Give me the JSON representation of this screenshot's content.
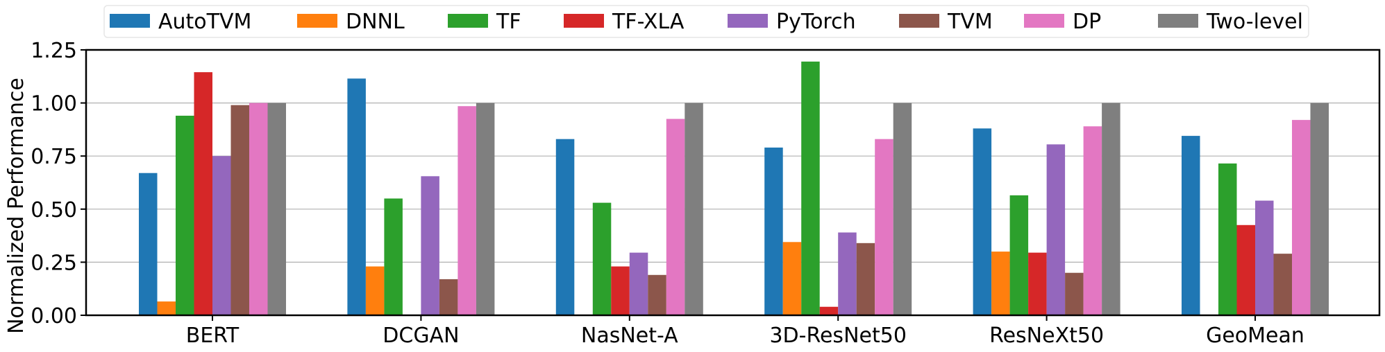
{
  "chart_data": {
    "type": "bar",
    "title": "",
    "xlabel": "",
    "ylabel": "Normalized Performance",
    "ylim": [
      0,
      1.25
    ],
    "yticks": [
      "0.00",
      "0.25",
      "0.50",
      "0.75",
      "1.00",
      "1.25"
    ],
    "grid": "horizontal",
    "legend_position": "top",
    "categories": [
      "BERT",
      "DCGAN",
      "NasNet-A",
      "3D-ResNet50",
      "ResNeXt50",
      "GeoMean"
    ],
    "series": [
      {
        "name": "AutoTVM",
        "color": "#1f77b4",
        "values": [
          0.67,
          1.115,
          0.83,
          0.79,
          0.88,
          0.845
        ]
      },
      {
        "name": "DNNL",
        "color": "#ff7f0e",
        "values": [
          0.065,
          0.23,
          null,
          0.345,
          0.3,
          null
        ]
      },
      {
        "name": "TF",
        "color": "#2ca02c",
        "values": [
          0.94,
          0.55,
          0.53,
          1.195,
          0.565,
          0.715
        ]
      },
      {
        "name": "TF-XLA",
        "color": "#d62728",
        "values": [
          1.145,
          null,
          0.23,
          0.04,
          0.295,
          0.425
        ]
      },
      {
        "name": "PyTorch",
        "color": "#9467bd",
        "values": [
          0.75,
          0.655,
          0.295,
          0.39,
          0.805,
          0.54
        ]
      },
      {
        "name": "TVM",
        "color": "#8c564b",
        "values": [
          0.99,
          0.17,
          0.19,
          0.34,
          0.2,
          0.29
        ]
      },
      {
        "name": "DP",
        "color": "#e377c2",
        "values": [
          1.0,
          0.985,
          0.925,
          0.83,
          0.89,
          0.92
        ]
      },
      {
        "name": "Two-level",
        "color": "#7f7f7f",
        "values": [
          1.0,
          1.0,
          1.0,
          1.0,
          1.0,
          1.0
        ]
      }
    ]
  }
}
